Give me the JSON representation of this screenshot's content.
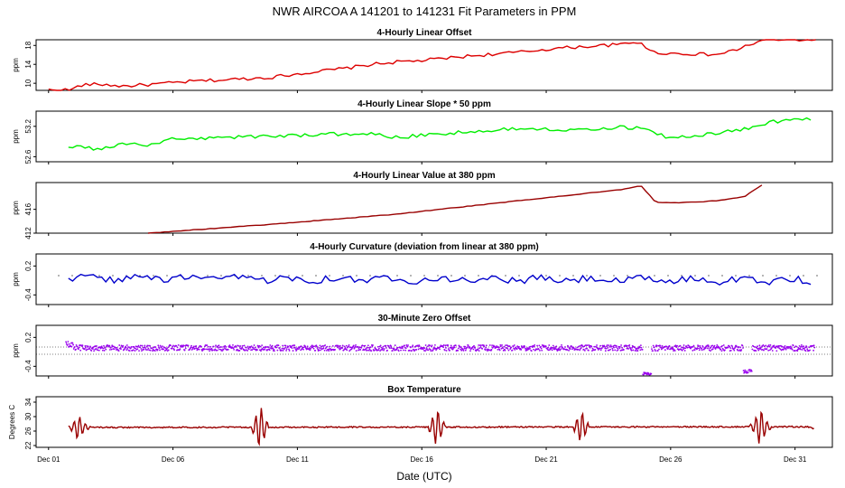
{
  "figure": {
    "title": "NWR   AIRCOA A   141201 to 141231   Fit Parameters in PPM",
    "xlabel": "Date (UTC)",
    "x_tick_labels": [
      "Dec 01",
      "Dec 06",
      "Dec 11",
      "Dec 16",
      "Dec 21",
      "Dec 26",
      "Dec 31"
    ]
  },
  "chart_data": [
    {
      "type": "line",
      "title": "4-Hourly Linear Offset",
      "ylabel": "ppm",
      "ylim": [
        8.5,
        19.2
      ],
      "yticks": [
        10,
        14,
        18
      ],
      "color": "#dd0000",
      "x_range_days": [
        1,
        31.9
      ],
      "knots": [
        [
          1.9,
          8.6
        ],
        [
          2.3,
          9.6
        ],
        [
          3.0,
          9.8
        ],
        [
          4.0,
          9.4
        ],
        [
          5.0,
          9.7
        ],
        [
          6.0,
          10.1
        ],
        [
          7.0,
          10.5
        ],
        [
          8.0,
          10.7
        ],
        [
          9.0,
          11.0
        ],
        [
          10.0,
          11.3
        ],
        [
          11.0,
          12.0
        ],
        [
          12.0,
          12.6
        ],
        [
          13.0,
          13.2
        ],
        [
          14.0,
          14.0
        ],
        [
          15.0,
          14.5
        ],
        [
          16.0,
          14.8
        ],
        [
          17.0,
          15.3
        ],
        [
          18.0,
          15.8
        ],
        [
          19.0,
          16.2
        ],
        [
          20.0,
          16.6
        ],
        [
          21.0,
          17.2
        ],
        [
          22.0,
          17.6
        ],
        [
          23.0,
          17.9
        ],
        [
          24.0,
          18.2
        ],
        [
          24.8,
          18.8
        ],
        [
          25.2,
          16.6
        ],
        [
          26.0,
          16.3
        ],
        [
          27.0,
          16.2
        ],
        [
          27.8,
          16.0
        ],
        [
          28.6,
          17.0
        ],
        [
          29.2,
          18.2
        ],
        [
          29.8,
          19.2
        ],
        [
          30.6,
          19.2
        ]
      ]
    },
    {
      "type": "line",
      "title": "4-Hourly Linear Slope * 50 ppm",
      "ylabel": "ppm",
      "ylim": [
        52.5,
        53.5
      ],
      "yticks": [
        52.6,
        53.2
      ],
      "color": "#00ee00",
      "x_range_days": [
        1.8,
        31.8
      ],
      "knots": [
        [
          1.8,
          52.82
        ],
        [
          3.0,
          52.74
        ],
        [
          4.0,
          52.86
        ],
        [
          5.0,
          52.82
        ],
        [
          6.0,
          52.95
        ],
        [
          8.0,
          52.98
        ],
        [
          10.0,
          53.01
        ],
        [
          12.0,
          53.04
        ],
        [
          14.0,
          53.06
        ],
        [
          15.0,
          52.98
        ],
        [
          16.0,
          53.02
        ],
        [
          18.0,
          53.1
        ],
        [
          20.0,
          53.16
        ],
        [
          22.0,
          53.14
        ],
        [
          24.0,
          53.18
        ],
        [
          25.0,
          53.17
        ],
        [
          26.0,
          52.95
        ],
        [
          27.0,
          53.02
        ],
        [
          28.0,
          53.08
        ],
        [
          29.0,
          53.15
        ],
        [
          30.0,
          53.28
        ],
        [
          31.0,
          53.34
        ],
        [
          31.8,
          53.35
        ]
      ]
    },
    {
      "type": "line",
      "title": "4-Hourly Linear Value at 380 ppm",
      "ylabel": "ppm",
      "ylim": [
        412,
        420.5
      ],
      "yticks": [
        412,
        416
      ],
      "color": "#990000",
      "x_range_days": [
        5,
        29.8
      ],
      "knots": [
        [
          5.0,
          412.0
        ],
        [
          10.0,
          413.5
        ],
        [
          15.0,
          415.2
        ],
        [
          20.0,
          417.5
        ],
        [
          24.0,
          419.3
        ],
        [
          24.8,
          420.0
        ],
        [
          25.4,
          417.2
        ],
        [
          26.0,
          417.1
        ],
        [
          27.0,
          417.2
        ],
        [
          28.0,
          417.5
        ],
        [
          29.0,
          418.2
        ],
        [
          29.8,
          420.5
        ]
      ]
    },
    {
      "type": "line",
      "title": "4-Hourly Curvature (deviation from linear at 380 ppm)",
      "ylabel": "ppm",
      "ylim": [
        -0.6,
        0.45
      ],
      "yticks": [
        -0.4,
        0.2
      ],
      "color": "#0000cc",
      "x_range_days": [
        1.8,
        31.8
      ],
      "knots": [
        [
          1.8,
          -0.05
        ],
        [
          31.2,
          -0.1
        ],
        [
          31.5,
          -0.22
        ],
        [
          31.8,
          -0.22
        ]
      ]
    },
    {
      "type": "scatter",
      "title": "30-Minute Zero Offset",
      "ylabel": "ppm",
      "ylim": [
        -0.6,
        0.45
      ],
      "yticks": [
        -0.4,
        0.2
      ],
      "color": "#9900ee",
      "x_range_days": [
        1.7,
        31.8
      ],
      "knots": [
        [
          1.7,
          0.1
        ],
        [
          31.8,
          0.0
        ]
      ]
    },
    {
      "type": "line",
      "title": "Box Temperature",
      "ylabel": "Degrees C",
      "ylim": [
        21.5,
        35.5
      ],
      "yticks": [
        22,
        26,
        30,
        34
      ],
      "color": "#990000",
      "x_range_days": [
        1.8,
        31.8
      ],
      "knots": [
        [
          1.8,
          27.0
        ],
        [
          31.5,
          27.2
        ],
        [
          31.8,
          26.5
        ]
      ]
    }
  ]
}
